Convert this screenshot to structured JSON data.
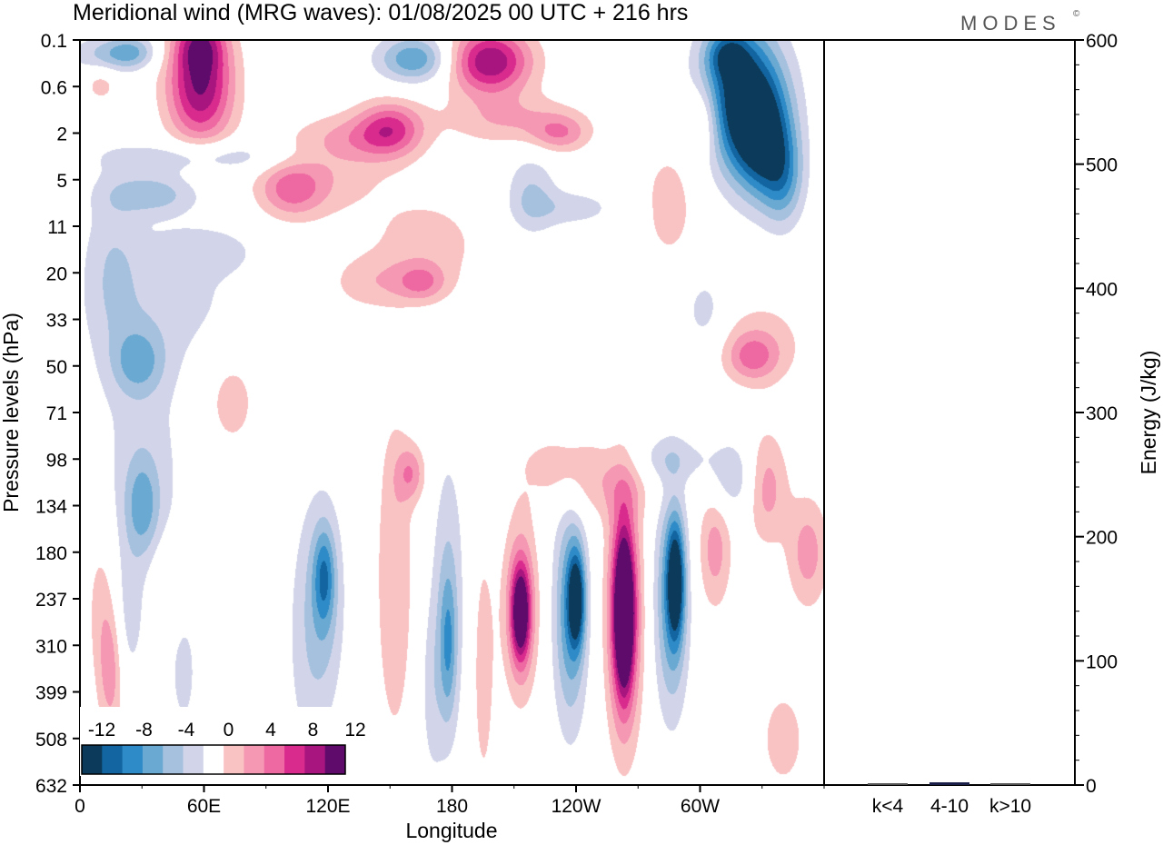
{
  "chart_data": {
    "type": "heatmap",
    "title": "Meridional wind (MRG waves):  01/08/2025  00 UTC  + 216 hrs",
    "brand": "MODES",
    "brand_mark": "©",
    "xlabel": "Longitude",
    "ylabel": "Pressure levels (hPa)",
    "x_ticks": [
      "0",
      "60E",
      "120E",
      "180",
      "120W",
      "60W"
    ],
    "x_tick_values": [
      0,
      60,
      120,
      180,
      240,
      300
    ],
    "xlim": [
      0,
      360
    ],
    "y_ticks": [
      "0.1",
      "0.6",
      "2",
      "5",
      "11",
      "20",
      "33",
      "50",
      "71",
      "98",
      "134",
      "180",
      "237",
      "310",
      "399",
      "508",
      "632"
    ],
    "colorbar": {
      "labels": [
        "-12",
        "-8",
        "-4",
        "0",
        "4",
        "8",
        "12"
      ],
      "levels": [
        -14,
        -12,
        -10,
        -8,
        -6,
        -4,
        -2,
        2,
        4,
        6,
        8,
        10,
        12,
        14
      ],
      "colors": [
        "#0b3a5a",
        "#1265a0",
        "#2f8bc7",
        "#6aa9d2",
        "#a6c1de",
        "#d2d5ea",
        "#ffffff",
        "#f9c3c4",
        "#f598b3",
        "#ee68a2",
        "#d92b8e",
        "#a8157f",
        "#5e0b6c"
      ]
    },
    "features": [
      {
        "lon": 58,
        "lev": 1.0,
        "w": 16,
        "h": 1.2,
        "v": 12
      },
      {
        "lon": 58,
        "lev": 0.05,
        "w": 12,
        "h": 0.6,
        "v": 7
      },
      {
        "lon": 12,
        "lev": 0.3,
        "w": 18,
        "h": 0.4,
        "v": -4
      },
      {
        "lon": 25,
        "lev": 0.25,
        "w": 12,
        "h": 0.35,
        "v": -5
      },
      {
        "lon": 10,
        "lev": 0.95,
        "w": 8,
        "h": 0.4,
        "v": 3
      },
      {
        "lon": 162,
        "lev": 0.4,
        "w": 18,
        "h": 0.5,
        "v": -8
      },
      {
        "lon": 198,
        "lev": 0.45,
        "w": 20,
        "h": 0.7,
        "v": 12
      },
      {
        "lon": 208,
        "lev": 1.7,
        "w": 32,
        "h": 0.55,
        "v": 4
      },
      {
        "lon": 232,
        "lev": 2.0,
        "w": 14,
        "h": 0.4,
        "v": 5
      },
      {
        "lon": 320,
        "lev": 1.2,
        "w": 20,
        "h": 1.5,
        "v": -14
      },
      {
        "lon": 330,
        "lev": 2.2,
        "w": 14,
        "h": 1.2,
        "v": -10
      },
      {
        "lon": 313,
        "lev": 0.3,
        "w": 10,
        "h": 0.5,
        "v": -6
      },
      {
        "lon": 340,
        "lev": 3.0,
        "w": 10,
        "h": 1.0,
        "v": -6
      },
      {
        "lon": 301,
        "lev": 1.7,
        "w": 9,
        "h": 0.8,
        "v": 5
      },
      {
        "lon": 285,
        "lev": 3.5,
        "w": 14,
        "h": 1.4,
        "v": 3
      },
      {
        "lon": 150,
        "lev": 1.9,
        "w": 16,
        "h": 0.6,
        "v": 8
      },
      {
        "lon": 132,
        "lev": 2.1,
        "w": 24,
        "h": 0.5,
        "v": 3
      },
      {
        "lon": 102,
        "lev": 3.2,
        "w": 16,
        "h": 0.6,
        "v": 6
      },
      {
        "lon": 120,
        "lev": 2.8,
        "w": 30,
        "h": 1.0,
        "v": 3
      },
      {
        "lon": 168,
        "lev": 4.4,
        "w": 28,
        "h": 1.1,
        "v": 3
      },
      {
        "lon": 165,
        "lev": 5.2,
        "w": 12,
        "h": 0.4,
        "v": 5
      },
      {
        "lon": 140,
        "lev": 5.2,
        "w": 20,
        "h": 0.6,
        "v": 3
      },
      {
        "lon": 60,
        "lev": 2.5,
        "w": 45,
        "h": 0.35,
        "v": -4
      },
      {
        "lon": 35,
        "lev": 3.3,
        "w": 22,
        "h": 0.45,
        "v": -5
      },
      {
        "lon": 15,
        "lev": 4.8,
        "w": 14,
        "h": 2.0,
        "v": -3
      },
      {
        "lon": 28,
        "lev": 6.9,
        "w": 12,
        "h": 0.7,
        "v": -5
      },
      {
        "lon": 45,
        "lev": 5.6,
        "w": 40,
        "h": 1.5,
        "v": -2.5
      },
      {
        "lon": 60,
        "lev": 4.5,
        "w": 25,
        "h": 0.5,
        "v": -2.5
      },
      {
        "lon": 218,
        "lev": 3.3,
        "w": 12,
        "h": 0.9,
        "v": -4
      },
      {
        "lon": 238,
        "lev": 3.6,
        "w": 22,
        "h": 0.4,
        "v": -3
      },
      {
        "lon": 302,
        "lev": 5.8,
        "w": 10,
        "h": 0.8,
        "v": -3
      },
      {
        "lon": 330,
        "lev": 6.5,
        "w": 22,
        "h": 1.0,
        "v": 3
      },
      {
        "lon": 325,
        "lev": 6.8,
        "w": 12,
        "h": 0.5,
        "v": 5
      },
      {
        "lon": 73,
        "lev": 7.7,
        "w": 14,
        "h": 1.2,
        "v": 3
      },
      {
        "lon": 30,
        "lev": 9.3,
        "w": 22,
        "h": 3.0,
        "v": -3
      },
      {
        "lon": 30,
        "lev": 10.0,
        "w": 8,
        "h": 1.0,
        "v": -5
      },
      {
        "lon": 50,
        "lev": 13.6,
        "w": 6,
        "h": 1.2,
        "v": -3
      },
      {
        "lon": 22,
        "lev": 12.5,
        "w": 8,
        "h": 1.5,
        "v": -2.5
      },
      {
        "lon": 15,
        "lev": 13.5,
        "w": 6,
        "h": 1.5,
        "v": 5
      },
      {
        "lon": 10,
        "lev": 12.0,
        "w": 8,
        "h": 2.0,
        "v": 3
      },
      {
        "lon": 42,
        "lev": 11.7,
        "w": 8,
        "h": 1.0,
        "v": 3
      },
      {
        "lon": 118,
        "lev": 12.0,
        "w": 10,
        "h": 2.2,
        "v": -4
      },
      {
        "lon": 118,
        "lev": 11.5,
        "w": 5,
        "h": 1.0,
        "v": -6
      },
      {
        "lon": 152,
        "lev": 11.5,
        "w": 9,
        "h": 3.6,
        "v": 4
      },
      {
        "lon": 160,
        "lev": 9.3,
        "w": 7,
        "h": 0.6,
        "v": 5
      },
      {
        "lon": 178,
        "lev": 12.0,
        "w": 8,
        "h": 3.2,
        "v": -4
      },
      {
        "lon": 178,
        "lev": 13.0,
        "w": 4,
        "h": 1.5,
        "v": -5
      },
      {
        "lon": 213,
        "lev": 12.2,
        "w": 8,
        "h": 1.8,
        "v": 8
      },
      {
        "lon": 213,
        "lev": 12.3,
        "w": 4,
        "h": 0.9,
        "v": 11
      },
      {
        "lon": 237,
        "lev": 12.3,
        "w": 8,
        "h": 2.4,
        "v": -8
      },
      {
        "lon": 240,
        "lev": 12.0,
        "w": 4,
        "h": 1.0,
        "v": -11
      },
      {
        "lon": 263,
        "lev": 12.3,
        "w": 8,
        "h": 2.6,
        "v": 12
      },
      {
        "lon": 263,
        "lev": 12.3,
        "w": 4,
        "h": 1.4,
        "v": 14
      },
      {
        "lon": 286,
        "lev": 12.0,
        "w": 8,
        "h": 2.4,
        "v": -8
      },
      {
        "lon": 288,
        "lev": 11.6,
        "w": 4,
        "h": 1.2,
        "v": -11
      },
      {
        "lon": 307,
        "lev": 10.9,
        "w": 8,
        "h": 1.3,
        "v": 5
      },
      {
        "lon": 315,
        "lev": 9.4,
        "w": 12,
        "h": 0.8,
        "v": -4
      },
      {
        "lon": 332,
        "lev": 9.6,
        "w": 10,
        "h": 1.2,
        "v": 5
      },
      {
        "lon": 352,
        "lev": 11.0,
        "w": 10,
        "h": 1.2,
        "v": 5
      },
      {
        "lon": 340,
        "lev": 15.0,
        "w": 12,
        "h": 1.2,
        "v": 3
      },
      {
        "lon": 250,
        "lev": 9.6,
        "w": 30,
        "h": 0.7,
        "v": 3
      },
      {
        "lon": 235,
        "lev": 9.0,
        "w": 20,
        "h": 0.5,
        "v": 3
      },
      {
        "lon": 285,
        "lev": 9.0,
        "w": 20,
        "h": 0.5,
        "v": -3
      },
      {
        "lon": 110,
        "lev": 13.0,
        "w": 12,
        "h": 3.0,
        "v": -2.5
      },
      {
        "lon": 195,
        "lev": 13.5,
        "w": 6,
        "h": 3.0,
        "v": 3
      },
      {
        "lon": 170,
        "lev": 14.0,
        "w": 6,
        "h": 2.0,
        "v": -2.5
      }
    ]
  }
}
